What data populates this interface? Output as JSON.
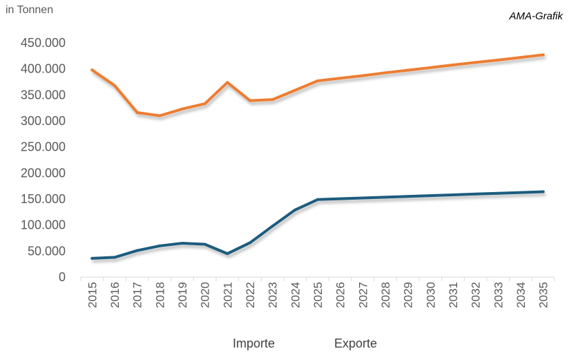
{
  "header": {
    "unit": "in Tonnen",
    "source": "AMA-Grafik"
  },
  "chart_data": {
    "type": "line",
    "title": "",
    "xlabel": "",
    "ylabel": "in Tonnen",
    "categories": [
      "2015",
      "2016",
      "2017",
      "2018",
      "2019",
      "2020",
      "2021",
      "2022",
      "2023",
      "2024",
      "2025",
      "2026",
      "2027",
      "2028",
      "2029",
      "2030",
      "2031",
      "2032",
      "2033",
      "2034",
      "2035"
    ],
    "y_ticks": [
      0,
      50000,
      100000,
      150000,
      200000,
      250000,
      300000,
      350000,
      400000,
      450000
    ],
    "y_tick_labels": [
      "0",
      "50.000",
      "100.000",
      "150.000",
      "200.000",
      "250.000",
      "300.000",
      "350.000",
      "400.000",
      "450.000"
    ],
    "ylim": [
      0,
      450000
    ],
    "grid": false,
    "legend_position": "bottom",
    "series": [
      {
        "name": "Importe",
        "color": "#1F5C7E",
        "values": [
          36000,
          38000,
          51000,
          60000,
          65000,
          63000,
          45000,
          66000,
          98000,
          129000,
          149000,
          150500,
          152000,
          153500,
          155000,
          156500,
          158000,
          159500,
          161000,
          162500,
          164000
        ]
      },
      {
        "name": "Exporte",
        "color": "#ED7D31",
        "values": [
          398000,
          368000,
          316000,
          310000,
          323000,
          333000,
          374000,
          339000,
          341000,
          359000,
          377000,
          382000,
          387000,
          392500,
          397500,
          402500,
          407500,
          412500,
          417000,
          422000,
          427000
        ]
      }
    ]
  }
}
